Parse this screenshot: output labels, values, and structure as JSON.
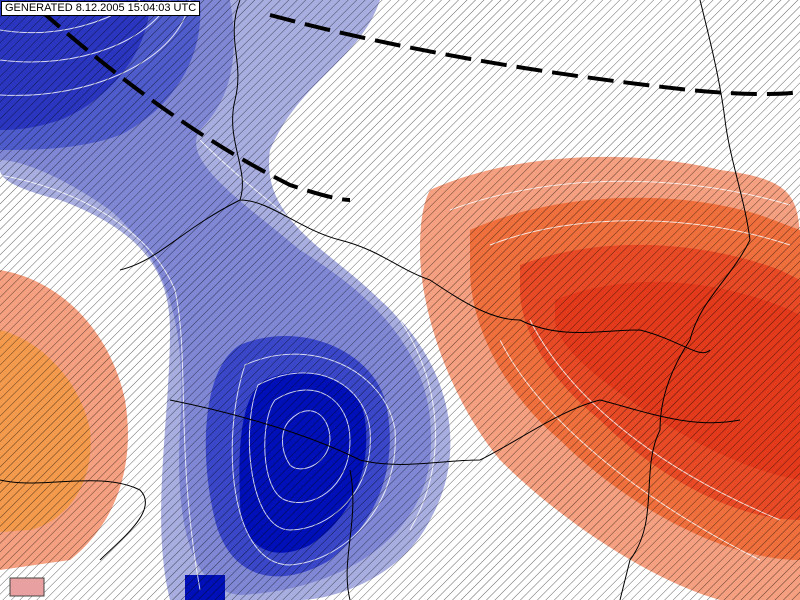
{
  "header": {
    "generated": "GENERATED 8.12.2005 15:04:03 UTC"
  }
}
